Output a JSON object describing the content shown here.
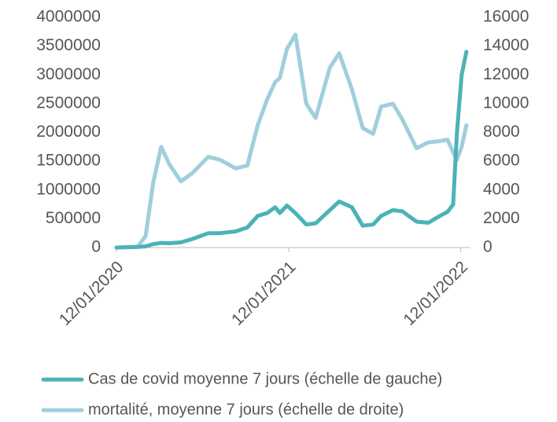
{
  "chart_data": {
    "type": "line",
    "x": [
      "2020-01-12",
      "2020-02-26",
      "2020-03-14",
      "2020-03-30",
      "2020-04-16",
      "2020-05-03",
      "2020-05-28",
      "2020-06-22",
      "2020-07-25",
      "2020-08-19",
      "2020-09-21",
      "2020-10-16",
      "2020-11-07",
      "2020-11-27",
      "2020-12-14",
      "2020-12-24",
      "2021-01-08",
      "2021-01-26",
      "2021-02-18",
      "2021-03-10",
      "2021-04-09",
      "2021-04-29",
      "2021-05-26",
      "2021-06-18",
      "2021-07-10",
      "2021-07-27",
      "2021-08-21",
      "2021-09-10",
      "2021-10-10",
      "2021-11-04",
      "2021-11-29",
      "2021-12-15",
      "2021-12-27",
      "2022-01-04",
      "2022-01-14",
      "2022-01-24"
    ],
    "series": [
      {
        "name": "Cas de covid moyenne 7 jours (échelle de gauche)",
        "color": "#4bb3b8",
        "axis": "y",
        "values": [
          0,
          10000,
          20000,
          60000,
          80000,
          75000,
          90000,
          150000,
          250000,
          250000,
          280000,
          350000,
          550000,
          600000,
          700000,
          600000,
          730000,
          600000,
          400000,
          420000,
          650000,
          800000,
          700000,
          380000,
          400000,
          550000,
          650000,
          630000,
          450000,
          430000,
          550000,
          620000,
          750000,
          2000000,
          3000000,
          3400000
        ]
      },
      {
        "name": "mortalité, moyenne 7 jours (échelle de droite)",
        "color": "#9fcfdb",
        "axis": "y2",
        "values": [
          0,
          50,
          800,
          4500,
          7000,
          5800,
          4600,
          5200,
          6300,
          6100,
          5500,
          5700,
          8500,
          10300,
          11500,
          11800,
          13800,
          14800,
          10000,
          9000,
          12500,
          13500,
          11000,
          8300,
          7900,
          9800,
          10000,
          8900,
          6900,
          7300,
          7400,
          7500,
          6600,
          6100,
          7000,
          8500
        ]
      }
    ],
    "xlim": [
      "2020-01-12",
      "2022-01-31"
    ],
    "xticks": [
      {
        "value": "2020-01-12",
        "label": "12/01/2020"
      },
      {
        "value": "2021-01-12",
        "label": "12/01/2021"
      },
      {
        "value": "2022-01-12",
        "label": "12/01/2022"
      }
    ],
    "ylim": [
      0,
      4000000
    ],
    "yticks": [
      0,
      500000,
      1000000,
      1500000,
      2000000,
      2500000,
      3000000,
      3500000,
      4000000
    ],
    "y2lim": [
      0,
      16000
    ],
    "y2ticks": [
      0,
      2000,
      4000,
      6000,
      8000,
      10000,
      12000,
      14000,
      16000
    ],
    "grid": false
  }
}
